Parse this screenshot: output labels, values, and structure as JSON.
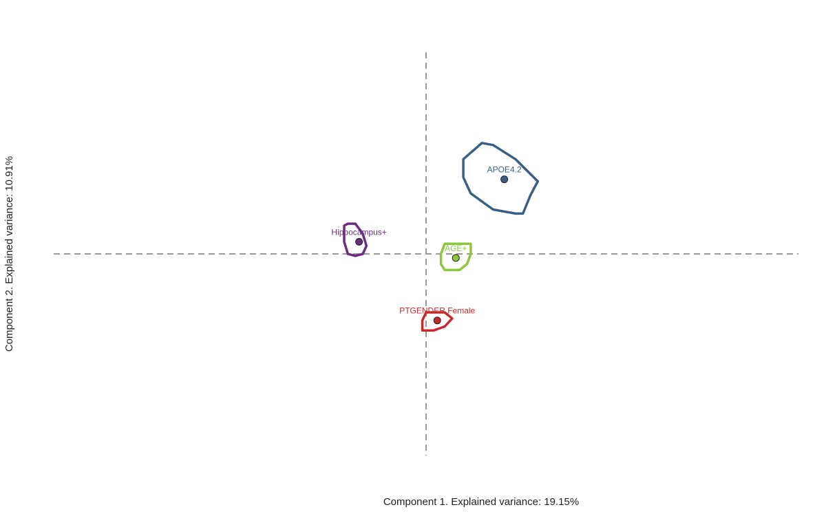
{
  "chart_data": {
    "type": "scatter",
    "title": "",
    "xlabel": "Component 1. Explained variance: 19.15%",
    "ylabel": "Component 2. Explained variance: 10.91%",
    "xlim": [
      -1,
      1
    ],
    "ylim": [
      -1,
      1
    ],
    "reference_lines": {
      "x": 0,
      "y": 0,
      "style": "dashed",
      "color": "#999999"
    },
    "grid": false,
    "legend": "none",
    "points": [
      {
        "label": "APOE4.2",
        "x": 0.21,
        "y": 0.37,
        "color": "#3A5F86",
        "region": [
          [
            0.1,
            0.47
          ],
          [
            0.15,
            0.55
          ],
          [
            0.18,
            0.54
          ],
          [
            0.24,
            0.47
          ],
          [
            0.3,
            0.36
          ],
          [
            0.28,
            0.29
          ],
          [
            0.26,
            0.2
          ],
          [
            0.24,
            0.2
          ],
          [
            0.18,
            0.22
          ],
          [
            0.12,
            0.3
          ],
          [
            0.1,
            0.38
          ],
          [
            0.1,
            0.42
          ]
        ]
      },
      {
        "label": "Hippocampus+",
        "x": -0.18,
        "y": 0.06,
        "color": "#6B2C82",
        "region": [
          [
            -0.21,
            0.15
          ],
          [
            -0.19,
            0.15
          ],
          [
            -0.17,
            0.1
          ],
          [
            -0.16,
            0.04
          ],
          [
            -0.17,
            0.0
          ],
          [
            -0.19,
            -0.01
          ],
          [
            -0.21,
            0.0
          ],
          [
            -0.22,
            0.06
          ],
          [
            -0.22,
            0.14
          ]
        ]
      },
      {
        "label": "AGE+",
        "x": 0.08,
        "y": -0.02,
        "color": "#8DC63F",
        "region": [
          [
            0.05,
            0.05
          ],
          [
            0.12,
            0.05
          ],
          [
            0.12,
            0.0
          ],
          [
            0.11,
            -0.05
          ],
          [
            0.09,
            -0.08
          ],
          [
            0.05,
            -0.08
          ],
          [
            0.04,
            -0.05
          ],
          [
            0.04,
            0.0
          ]
        ]
      },
      {
        "label": "PTGENDER.Female",
        "x": 0.03,
        "y": -0.33,
        "color": "#C8282A",
        "region": [
          [
            0.0,
            -0.29
          ],
          [
            0.05,
            -0.29
          ],
          [
            0.07,
            -0.32
          ],
          [
            0.05,
            -0.36
          ],
          [
            0.02,
            -0.38
          ],
          [
            -0.01,
            -0.38
          ],
          [
            -0.01,
            -0.33
          ]
        ]
      }
    ]
  }
}
